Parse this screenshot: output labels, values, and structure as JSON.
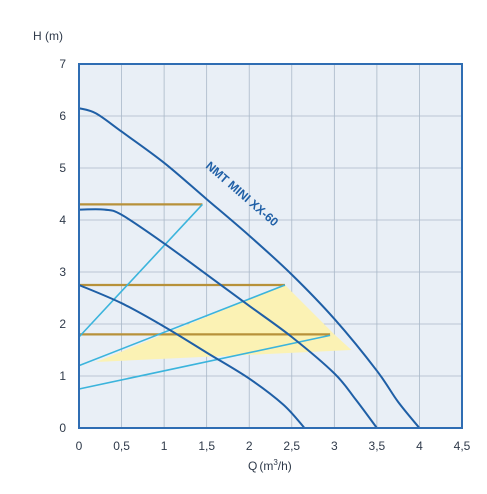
{
  "chart_data": {
    "type": "line",
    "title": "",
    "xlabel": "Q",
    "xlabel_unit_base": "(m",
    "xlabel_unit_sup": "3",
    "xlabel_unit_tail": "/h)",
    "ylabel": "H (m)",
    "xlim": [
      0,
      4.5
    ],
    "ylim": [
      0,
      7
    ],
    "x_ticks": [
      "0",
      "0,5",
      "1",
      "1,5",
      "2",
      "2,5",
      "3",
      "3,5",
      "4",
      "4,5"
    ],
    "y_ticks": [
      "0",
      "1",
      "2",
      "3",
      "4",
      "5",
      "6",
      "7"
    ],
    "grid": true,
    "curve_label": "NMT MINI XX-60",
    "colors": {
      "background": "#e9eff6",
      "frame": "#2f6db3",
      "grid": "#aab8c8",
      "pump_curve": "#1f5fa6",
      "system_curve": "#3bb4dc",
      "level_line": "#b7913a",
      "operating_area": "#fbf2b4"
    },
    "pump_curves": [
      {
        "points": [
          [
            0,
            2.75
          ],
          [
            0.5,
            2.4
          ],
          [
            1,
            1.95
          ],
          [
            1.5,
            1.45
          ],
          [
            2,
            0.95
          ],
          [
            2.4,
            0.45
          ],
          [
            2.65,
            0
          ]
        ]
      },
      {
        "points": [
          [
            0,
            4.2
          ],
          [
            0.3,
            4.2
          ],
          [
            0.5,
            4.1
          ],
          [
            1,
            3.55
          ],
          [
            1.5,
            2.95
          ],
          [
            2,
            2.35
          ],
          [
            2.5,
            1.75
          ],
          [
            3,
            1.05
          ],
          [
            3.25,
            0.55
          ],
          [
            3.5,
            0
          ]
        ]
      },
      {
        "points": [
          [
            0,
            6.15
          ],
          [
            0.2,
            6.05
          ],
          [
            0.5,
            5.7
          ],
          [
            1,
            5.1
          ],
          [
            1.5,
            4.4
          ],
          [
            2,
            3.7
          ],
          [
            2.5,
            2.95
          ],
          [
            3,
            2.1
          ],
          [
            3.5,
            1.1
          ],
          [
            3.75,
            0.5
          ],
          [
            4,
            0
          ]
        ]
      }
    ],
    "system_curves": [
      {
        "points": [
          [
            0,
            1.75
          ],
          [
            1.45,
            4.3
          ]
        ]
      },
      {
        "points": [
          [
            0,
            1.2
          ],
          [
            2.42,
            2.75
          ]
        ]
      },
      {
        "points": [
          [
            0,
            0.75
          ],
          [
            2.95,
            1.78
          ]
        ]
      }
    ],
    "level_lines": [
      {
        "y": 4.3,
        "x_start": 0,
        "x_end": 1.45
      },
      {
        "y": 2.75,
        "x_start": 0,
        "x_end": 2.42
      },
      {
        "y": 1.8,
        "x_start": 0,
        "x_end": 2.95
      }
    ],
    "operating_area": [
      [
        0.2,
        1.27
      ],
      [
        2.42,
        2.75
      ],
      [
        3.0,
        1.8
      ],
      [
        3.2,
        1.5
      ],
      [
        0.2,
        1.27
      ]
    ]
  }
}
